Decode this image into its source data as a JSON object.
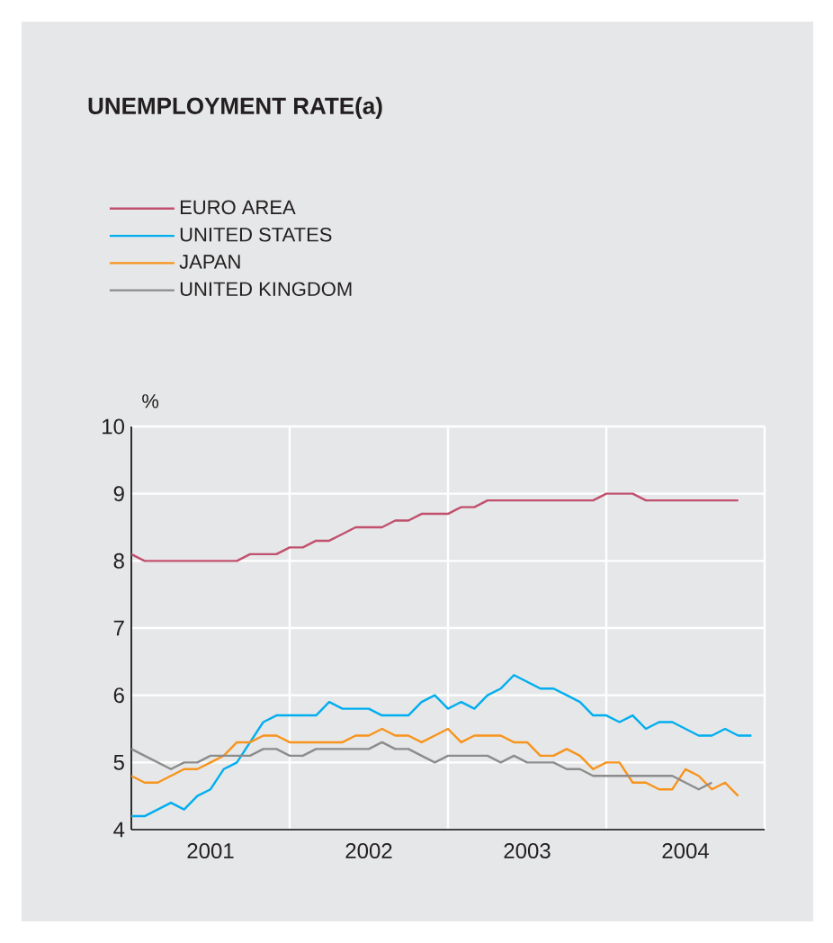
{
  "chart_data": {
    "type": "line",
    "title": "UNEMPLOYMENT RATE(a)",
    "ylabel": "%",
    "xlim": [
      "2001-01",
      "2005-01"
    ],
    "xticks": [
      {
        "value": "2001-07",
        "label": "2001"
      },
      {
        "value": "2002-01",
        "label": null
      },
      {
        "value": "2002-07",
        "label": "2002"
      },
      {
        "value": "2003-01",
        "label": null
      },
      {
        "value": "2003-07",
        "label": "2003"
      },
      {
        "value": "2004-01",
        "label": null
      },
      {
        "value": "2004-07",
        "label": "2004"
      },
      {
        "value": "2005-01",
        "label": null
      }
    ],
    "ylim": [
      4,
      10
    ],
    "yticks": [
      4,
      5,
      6,
      7,
      8,
      9,
      10
    ],
    "grid": true,
    "legend": "top left",
    "line_style": "solid",
    "marker": "none",
    "series": [
      {
        "name": "EURO AREA",
        "color": "#c0506e",
        "x": [
          "2001-01",
          "2001-02",
          "2001-03",
          "2001-04",
          "2001-05",
          "2001-06",
          "2001-07",
          "2001-08",
          "2001-09",
          "2001-10",
          "2001-11",
          "2001-12",
          "2002-01",
          "2002-02",
          "2002-03",
          "2002-04",
          "2002-05",
          "2002-06",
          "2002-07",
          "2002-08",
          "2002-09",
          "2002-10",
          "2002-11",
          "2002-12",
          "2003-01",
          "2003-02",
          "2003-03",
          "2003-04",
          "2003-05",
          "2003-06",
          "2003-07",
          "2003-08",
          "2003-09",
          "2003-10",
          "2003-11",
          "2003-12",
          "2004-01",
          "2004-02",
          "2004-03",
          "2004-04",
          "2004-05",
          "2004-06",
          "2004-07",
          "2004-08",
          "2004-09",
          "2004-10",
          "2004-11"
        ],
        "values": [
          8.1,
          8.0,
          8.0,
          8.0,
          8.0,
          8.0,
          8.0,
          8.0,
          8.0,
          8.1,
          8.1,
          8.1,
          8.2,
          8.2,
          8.3,
          8.3,
          8.4,
          8.5,
          8.5,
          8.5,
          8.6,
          8.6,
          8.7,
          8.7,
          8.7,
          8.8,
          8.8,
          8.9,
          8.9,
          8.9,
          8.9,
          8.9,
          8.9,
          8.9,
          8.9,
          8.9,
          9.0,
          9.0,
          9.0,
          8.9,
          8.9,
          8.9,
          8.9,
          8.9,
          8.9,
          8.9,
          8.9
        ]
      },
      {
        "name": "UNITED STATES",
        "color": "#00aeef",
        "x": [
          "2001-01",
          "2001-02",
          "2001-03",
          "2001-04",
          "2001-05",
          "2001-06",
          "2001-07",
          "2001-08",
          "2001-09",
          "2001-10",
          "2001-11",
          "2001-12",
          "2002-01",
          "2002-02",
          "2002-03",
          "2002-04",
          "2002-05",
          "2002-06",
          "2002-07",
          "2002-08",
          "2002-09",
          "2002-10",
          "2002-11",
          "2002-12",
          "2003-01",
          "2003-02",
          "2003-03",
          "2003-04",
          "2003-05",
          "2003-06",
          "2003-07",
          "2003-08",
          "2003-09",
          "2003-10",
          "2003-11",
          "2003-12",
          "2004-01",
          "2004-02",
          "2004-03",
          "2004-04",
          "2004-05",
          "2004-06",
          "2004-07",
          "2004-08",
          "2004-09",
          "2004-10",
          "2004-11",
          "2004-12"
        ],
        "values": [
          4.2,
          4.2,
          4.3,
          4.4,
          4.3,
          4.5,
          4.6,
          4.9,
          5.0,
          5.3,
          5.6,
          5.7,
          5.7,
          5.7,
          5.7,
          5.9,
          5.8,
          5.8,
          5.8,
          5.7,
          5.7,
          5.7,
          5.9,
          6.0,
          5.8,
          5.9,
          5.8,
          6.0,
          6.1,
          6.3,
          6.2,
          6.1,
          6.1,
          6.0,
          5.9,
          5.7,
          5.7,
          5.6,
          5.7,
          5.5,
          5.6,
          5.6,
          5.5,
          5.4,
          5.4,
          5.5,
          5.4,
          5.4
        ]
      },
      {
        "name": "JAPAN",
        "color": "#f7941d",
        "x": [
          "2001-01",
          "2001-02",
          "2001-03",
          "2001-04",
          "2001-05",
          "2001-06",
          "2001-07",
          "2001-08",
          "2001-09",
          "2001-10",
          "2001-11",
          "2001-12",
          "2002-01",
          "2002-02",
          "2002-03",
          "2002-04",
          "2002-05",
          "2002-06",
          "2002-07",
          "2002-08",
          "2002-09",
          "2002-10",
          "2002-11",
          "2002-12",
          "2003-01",
          "2003-02",
          "2003-03",
          "2003-04",
          "2003-05",
          "2003-06",
          "2003-07",
          "2003-08",
          "2003-09",
          "2003-10",
          "2003-11",
          "2003-12",
          "2004-01",
          "2004-02",
          "2004-03",
          "2004-04",
          "2004-05",
          "2004-06",
          "2004-07",
          "2004-08",
          "2004-09",
          "2004-10",
          "2004-11"
        ],
        "values": [
          4.8,
          4.7,
          4.7,
          4.8,
          4.9,
          4.9,
          5.0,
          5.1,
          5.3,
          5.3,
          5.4,
          5.4,
          5.3,
          5.3,
          5.3,
          5.3,
          5.3,
          5.4,
          5.4,
          5.5,
          5.4,
          5.4,
          5.3,
          5.4,
          5.5,
          5.3,
          5.4,
          5.4,
          5.4,
          5.3,
          5.3,
          5.1,
          5.1,
          5.2,
          5.1,
          4.9,
          5.0,
          5.0,
          4.7,
          4.7,
          4.6,
          4.6,
          4.9,
          4.8,
          4.6,
          4.7,
          4.5
        ]
      },
      {
        "name": "UNITED KINGDOM",
        "color": "#8c8c8c",
        "x": [
          "2001-01",
          "2001-02",
          "2001-03",
          "2001-04",
          "2001-05",
          "2001-06",
          "2001-07",
          "2001-08",
          "2001-09",
          "2001-10",
          "2001-11",
          "2001-12",
          "2002-01",
          "2002-02",
          "2002-03",
          "2002-04",
          "2002-05",
          "2002-06",
          "2002-07",
          "2002-08",
          "2002-09",
          "2002-10",
          "2002-11",
          "2002-12",
          "2003-01",
          "2003-02",
          "2003-03",
          "2003-04",
          "2003-05",
          "2003-06",
          "2003-07",
          "2003-08",
          "2003-09",
          "2003-10",
          "2003-11",
          "2003-12",
          "2004-01",
          "2004-02",
          "2004-03",
          "2004-04",
          "2004-05",
          "2004-06",
          "2004-07",
          "2004-08",
          "2004-09"
        ],
        "values": [
          5.2,
          5.1,
          5.0,
          4.9,
          5.0,
          5.0,
          5.1,
          5.1,
          5.1,
          5.1,
          5.2,
          5.2,
          5.1,
          5.1,
          5.2,
          5.2,
          5.2,
          5.2,
          5.2,
          5.3,
          5.2,
          5.2,
          5.1,
          5.0,
          5.1,
          5.1,
          5.1,
          5.1,
          5.0,
          5.1,
          5.0,
          5.0,
          5.0,
          4.9,
          4.9,
          4.8,
          4.8,
          4.8,
          4.8,
          4.8,
          4.8,
          4.8,
          4.7,
          4.6,
          4.7
        ]
      }
    ]
  }
}
